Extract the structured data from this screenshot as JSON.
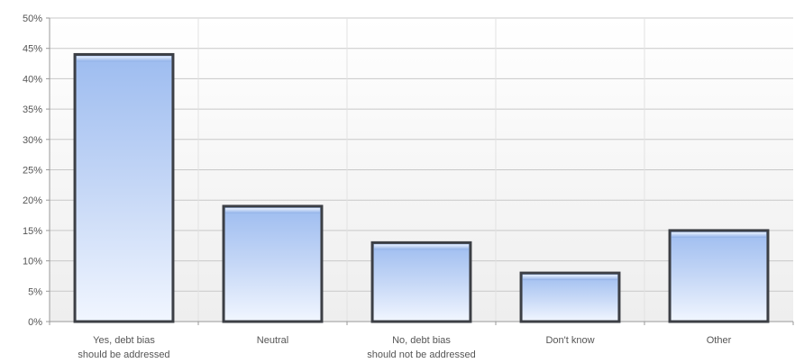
{
  "chart_data": {
    "type": "bar",
    "categories": [
      [
        "Yes, debt bias",
        "should be addressed"
      ],
      [
        "Neutral"
      ],
      [
        "No, debt bias",
        "should not be addressed"
      ],
      [
        "Don't know"
      ],
      [
        "Other"
      ]
    ],
    "values": [
      44,
      19,
      13,
      8,
      15
    ],
    "y_unit": "%",
    "ylim": [
      0,
      50
    ],
    "y_ticks": [
      "0%",
      "5%",
      "10%",
      "15%",
      "20%",
      "25%",
      "30%",
      "35%",
      "40%",
      "45%",
      "50%"
    ],
    "title": "",
    "xlabel": "",
    "ylabel": "",
    "grid": true,
    "legend": "none",
    "colors": {
      "bar_top": "#d9e6fb",
      "bar_mid": "#a9c3f0",
      "bar_bottom": "#f2f7ff",
      "bar_edge": "#3c3f45",
      "gridline": "#c8c8c8",
      "plot_bg": "#f6f6f6"
    }
  }
}
